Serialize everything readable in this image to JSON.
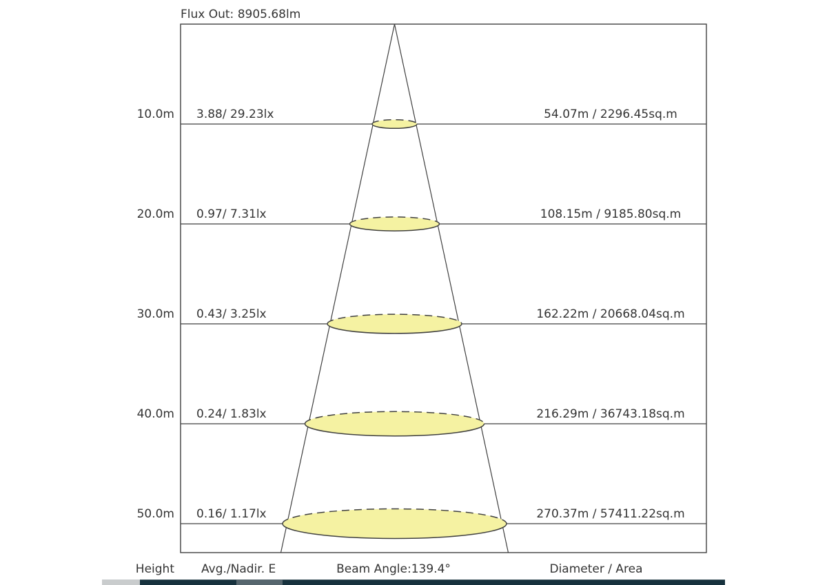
{
  "title": "Flux Out: 8905.68lm",
  "footer": {
    "height": "Height",
    "avg_nadir": "Avg./Nadir. E",
    "beam_angle": "Beam Angle:139.4°",
    "diameter_area": "Diameter / Area"
  },
  "chart_data": {
    "type": "photometric-cone",
    "title": "Flux Out: 8905.68lm",
    "flux_out_lm": 8905.68,
    "beam_angle_deg": 139.4,
    "columns": [
      "Height",
      "Avg./Nadir. E",
      "Diameter / Area"
    ],
    "rows": [
      {
        "height_label": "10.0m",
        "height_m": 10.0,
        "avg_nadir_label": "3.88/ 29.23lx",
        "avg_lx": 3.88,
        "nadir_lx": 29.23,
        "diameter_area_label": "54.07m / 2296.45sq.m",
        "diameter_m": 54.07,
        "area_sqm": 2296.45
      },
      {
        "height_label": "20.0m",
        "height_m": 20.0,
        "avg_nadir_label": "0.97/ 7.31lx",
        "avg_lx": 0.97,
        "nadir_lx": 7.31,
        "diameter_area_label": "108.15m / 9185.80sq.m",
        "diameter_m": 108.15,
        "area_sqm": 9185.8
      },
      {
        "height_label": "30.0m",
        "height_m": 30.0,
        "avg_nadir_label": "0.43/ 3.25lx",
        "avg_lx": 0.43,
        "nadir_lx": 3.25,
        "diameter_area_label": "162.22m / 20668.04sq.m",
        "diameter_m": 162.22,
        "area_sqm": 20668.04
      },
      {
        "height_label": "40.0m",
        "height_m": 40.0,
        "avg_nadir_label": "0.24/ 1.83lx",
        "avg_lx": 0.24,
        "nadir_lx": 1.83,
        "diameter_area_label": "216.29m / 36743.18sq.m",
        "diameter_m": 216.29,
        "area_sqm": 36743.18
      },
      {
        "height_label": "50.0m",
        "height_m": 50.0,
        "avg_nadir_label": "0.16/ 1.17lx",
        "avg_lx": 0.16,
        "nadir_lx": 1.17,
        "diameter_area_label": "270.37m / 57411.22sq.m",
        "diameter_m": 270.37,
        "area_sqm": 57411.22
      }
    ],
    "colors": {
      "beam_fill": "#F5F2A2",
      "outline": "#3F3F3F",
      "text": "#333333",
      "bar_dark": "#17323E",
      "bar_light": "#C9CCCD",
      "bar_mid": "#56666E"
    }
  }
}
